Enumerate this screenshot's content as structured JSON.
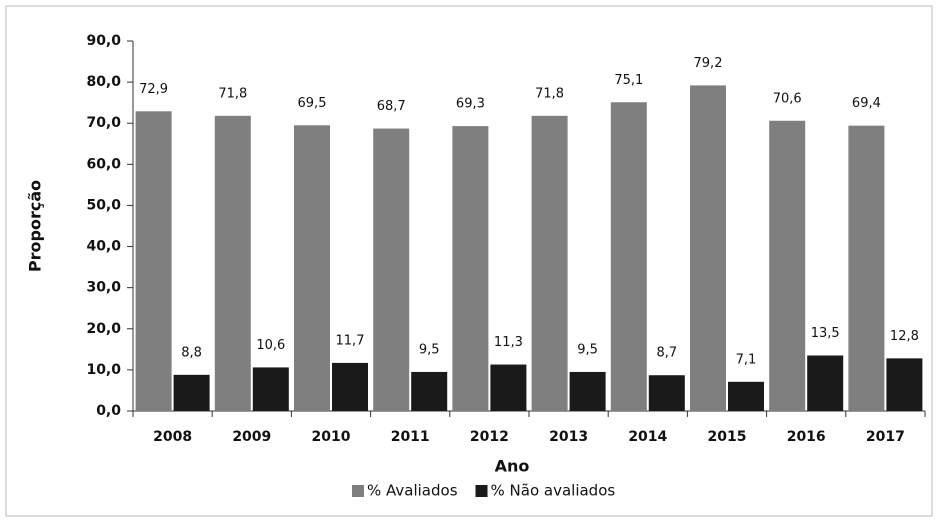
{
  "chart_data": {
    "type": "bar",
    "categories": [
      "2008",
      "2009",
      "2010",
      "2011",
      "2012",
      "2013",
      "2014",
      "2015",
      "2016",
      "2017"
    ],
    "series": [
      {
        "name": "% Avaliados",
        "color": "#7f7f7f",
        "values": [
          72.9,
          71.8,
          69.5,
          68.7,
          69.3,
          71.8,
          75.1,
          79.2,
          70.6,
          69.4
        ],
        "value_labels": [
          "72,9",
          "71,8",
          "69,5",
          "68,7",
          "69,3",
          "71,8",
          "75,1",
          "79,2",
          "70,6",
          "69,4"
        ]
      },
      {
        "name": "% Não avaliados",
        "color": "#1a1a1a",
        "values": [
          8.8,
          10.6,
          11.7,
          9.5,
          11.3,
          9.5,
          8.7,
          7.1,
          13.5,
          12.8
        ],
        "value_labels": [
          "8,8",
          "10,6",
          "11,7",
          "9,5",
          "11,3",
          "9,5",
          "8,7",
          "7,1",
          "13,5",
          "12,8"
        ]
      }
    ],
    "xlabel": "Ano",
    "ylabel": "Proporção",
    "ylim": [
      0,
      90
    ],
    "yticks": [
      {
        "value": 0,
        "label": "0,0"
      },
      {
        "value": 10,
        "label": "10,0"
      },
      {
        "value": 20,
        "label": "20,0"
      },
      {
        "value": 30,
        "label": "30,0"
      },
      {
        "value": 40,
        "label": "40,0"
      },
      {
        "value": 50,
        "label": "50,0"
      },
      {
        "value": 60,
        "label": "60,0"
      },
      {
        "value": 70,
        "label": "70,0"
      },
      {
        "value": 80,
        "label": "80,0"
      },
      {
        "value": 90,
        "label": "90,0"
      }
    ],
    "legend": "bottom"
  }
}
